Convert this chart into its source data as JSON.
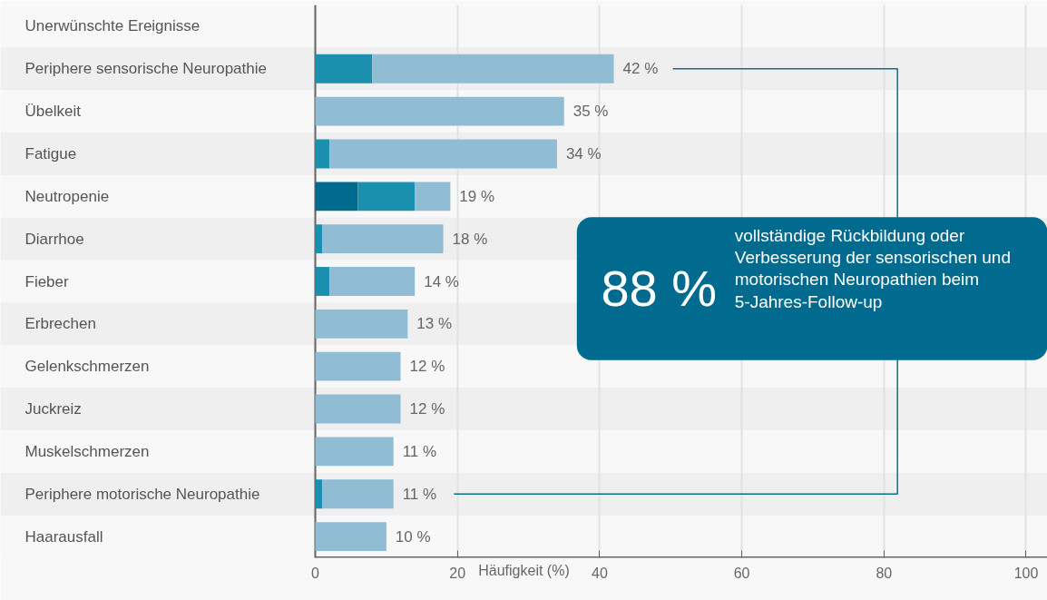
{
  "chart_data": {
    "type": "bar",
    "orientation": "horizontal",
    "stacked": true,
    "ylabel": "Unerwünschte Ereignisse",
    "xlabel": "Häufigkeit (%)",
    "categories": [
      "Periphere sensorische Neuropathie",
      "Übelkeit",
      "Fatigue",
      "Neutropenie",
      "Diarrhoe",
      "Fieber",
      "Erbrechen",
      "Gelenkschmerzen",
      "Juckreiz",
      "Muskelschmerzen",
      "Periphere motorische Neuropathie",
      "Haarausfall"
    ],
    "series": [
      {
        "color": "#006b8e",
        "values": [
          null,
          null,
          null,
          6,
          null,
          null,
          null,
          null,
          null,
          null,
          null,
          null
        ]
      },
      {
        "color": "#1a8fae",
        "values": [
          8,
          null,
          2,
          8,
          1,
          2,
          null,
          null,
          null,
          null,
          1,
          null
        ]
      },
      {
        "color": "#90bdd3",
        "values": [
          34,
          35,
          32,
          5,
          17,
          12,
          13,
          12,
          12,
          11,
          10,
          10
        ]
      }
    ],
    "totals": [
      "42 %",
      "35 %",
      "34 %",
      "19 %",
      "18 %",
      "14 %",
      "13 %",
      "12 %",
      "12 %",
      "11 %",
      "11 %",
      "10 %"
    ],
    "xlim": [
      0,
      103
    ],
    "xticks": [
      0,
      20,
      40,
      60,
      80,
      100
    ],
    "grid": "x",
    "annotations": [
      "88 %",
      "vollständige Rückbildung oder Verbesserung der sensorischen und motorischen Neuropathien beim 5-Jahres-Follow-up"
    ]
  }
}
